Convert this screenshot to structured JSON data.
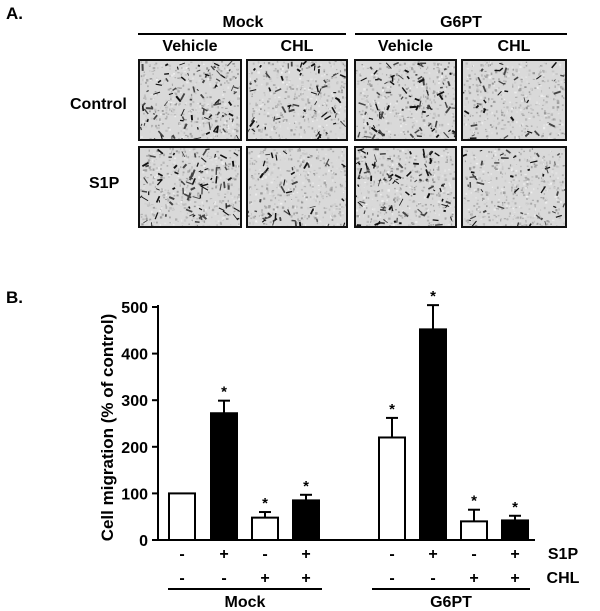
{
  "panel_a": {
    "label": "A.",
    "groups": [
      "Mock",
      "G6PT"
    ],
    "columns": [
      "Vehicle",
      "CHL",
      "Vehicle",
      "CHL"
    ],
    "rows": [
      "Control",
      "S1P"
    ],
    "image_density": [
      [
        0.9,
        0.55,
        0.85,
        0.25
      ],
      [
        0.85,
        0.4,
        0.95,
        0.35
      ]
    ]
  },
  "panel_b": {
    "label": "B.",
    "factors": [
      {
        "name": "S1P",
        "values": [
          "-",
          "+",
          "-",
          "+",
          "-",
          "+",
          "-",
          "+"
        ]
      },
      {
        "name": "CHL",
        "values": [
          "-",
          "-",
          "+",
          "+",
          "-",
          "-",
          "+",
          "+"
        ]
      }
    ],
    "groups": [
      "Mock",
      "G6PT"
    ]
  },
  "chart_data": {
    "type": "bar",
    "ylabel": "Cell migration (% of control)",
    "ylim": [
      0,
      500
    ],
    "yticks": [
      0,
      100,
      200,
      300,
      400,
      500
    ],
    "groups": [
      "Mock",
      "G6PT"
    ],
    "bars": [
      {
        "group": "Mock",
        "s1p": "-",
        "chl": "-",
        "value": 100,
        "error": 0,
        "fill": "white",
        "sig": ""
      },
      {
        "group": "Mock",
        "s1p": "+",
        "chl": "-",
        "value": 272,
        "error": 27,
        "fill": "black",
        "sig": "*"
      },
      {
        "group": "Mock",
        "s1p": "-",
        "chl": "+",
        "value": 48,
        "error": 12,
        "fill": "white",
        "sig": "*"
      },
      {
        "group": "Mock",
        "s1p": "+",
        "chl": "+",
        "value": 85,
        "error": 12,
        "fill": "black",
        "sig": "*"
      },
      {
        "group": "G6PT",
        "s1p": "-",
        "chl": "-",
        "value": 220,
        "error": 42,
        "fill": "white",
        "sig": "*"
      },
      {
        "group": "G6PT",
        "s1p": "+",
        "chl": "-",
        "value": 452,
        "error": 52,
        "fill": "black",
        "sig": "*"
      },
      {
        "group": "G6PT",
        "s1p": "-",
        "chl": "+",
        "value": 40,
        "error": 25,
        "fill": "white",
        "sig": "*"
      },
      {
        "group": "G6PT",
        "s1p": "+",
        "chl": "+",
        "value": 42,
        "error": 10,
        "fill": "black",
        "sig": "*"
      }
    ]
  }
}
